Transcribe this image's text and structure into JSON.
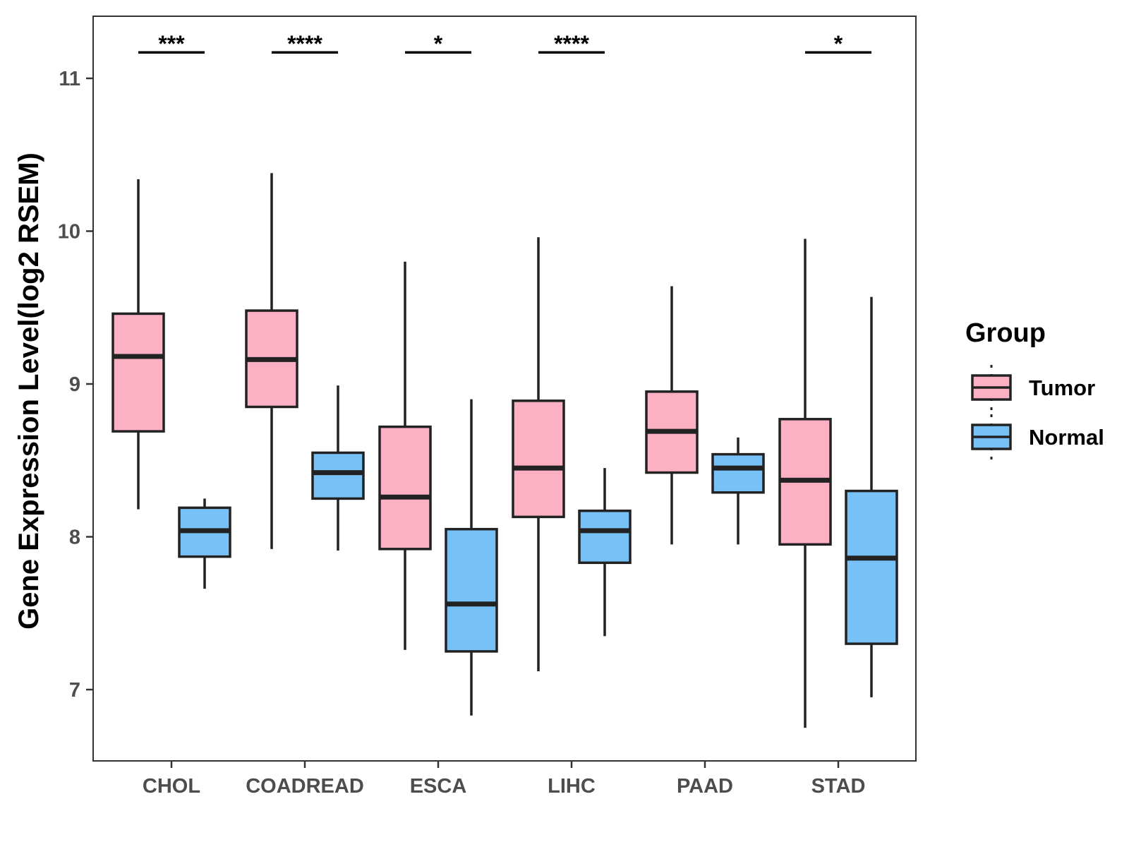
{
  "chart_data": {
    "type": "box",
    "ylabel": "Gene Expression Level(log2 RSEM)",
    "xlabel": "",
    "ylim": [
      6.5,
      11.4
    ],
    "y_ticks": [
      7,
      8,
      9,
      10,
      11
    ],
    "categories": [
      "CHOL",
      "COADREAD",
      "ESCA",
      "LIHC",
      "PAAD",
      "STAD"
    ],
    "legend": {
      "title": "Group",
      "position": "right",
      "entries": [
        {
          "name": "Tumor",
          "color": "#fbb1c3"
        },
        {
          "name": "Normal",
          "color": "#78c1f7"
        }
      ]
    },
    "series": [
      {
        "name": "Tumor",
        "color": "#fbb1c3",
        "boxes": [
          {
            "category": "CHOL",
            "min": 8.18,
            "q1": 8.69,
            "median": 9.18,
            "q3": 9.46,
            "max": 10.34
          },
          {
            "category": "COADREAD",
            "min": 7.92,
            "q1": 8.85,
            "median": 9.16,
            "q3": 9.48,
            "max": 10.38
          },
          {
            "category": "ESCA",
            "min": 7.26,
            "q1": 7.92,
            "median": 8.26,
            "q3": 8.72,
            "max": 9.8
          },
          {
            "category": "LIHC",
            "min": 7.12,
            "q1": 8.13,
            "median": 8.45,
            "q3": 8.89,
            "max": 9.96
          },
          {
            "category": "PAAD",
            "min": 7.95,
            "q1": 8.42,
            "median": 8.69,
            "q3": 8.95,
            "max": 9.64
          },
          {
            "category": "STAD",
            "min": 6.75,
            "q1": 7.95,
            "median": 8.37,
            "q3": 8.77,
            "max": 9.95
          }
        ]
      },
      {
        "name": "Normal",
        "color": "#78c1f7",
        "boxes": [
          {
            "category": "CHOL",
            "min": 7.66,
            "q1": 7.87,
            "median": 8.04,
            "q3": 8.19,
            "max": 8.25
          },
          {
            "category": "COADREAD",
            "min": 7.91,
            "q1": 8.25,
            "median": 8.42,
            "q3": 8.55,
            "max": 8.99
          },
          {
            "category": "ESCA",
            "min": 6.83,
            "q1": 7.25,
            "median": 7.56,
            "q3": 8.05,
            "max": 8.9
          },
          {
            "category": "LIHC",
            "min": 7.35,
            "q1": 7.83,
            "median": 8.04,
            "q3": 8.17,
            "max": 8.45
          },
          {
            "category": "PAAD",
            "min": 7.95,
            "q1": 8.29,
            "median": 8.45,
            "q3": 8.54,
            "max": 8.65
          },
          {
            "category": "STAD",
            "min": 6.95,
            "q1": 7.3,
            "median": 7.86,
            "q3": 8.3,
            "max": 9.57
          }
        ]
      }
    ],
    "significance": [
      {
        "category": "CHOL",
        "label": "***"
      },
      {
        "category": "COADREAD",
        "label": "****"
      },
      {
        "category": "ESCA",
        "label": "*"
      },
      {
        "category": "LIHC",
        "label": "****"
      },
      {
        "category": "PAAD",
        "label": ""
      },
      {
        "category": "STAD",
        "label": "*"
      }
    ],
    "significance_level": 11.17
  }
}
